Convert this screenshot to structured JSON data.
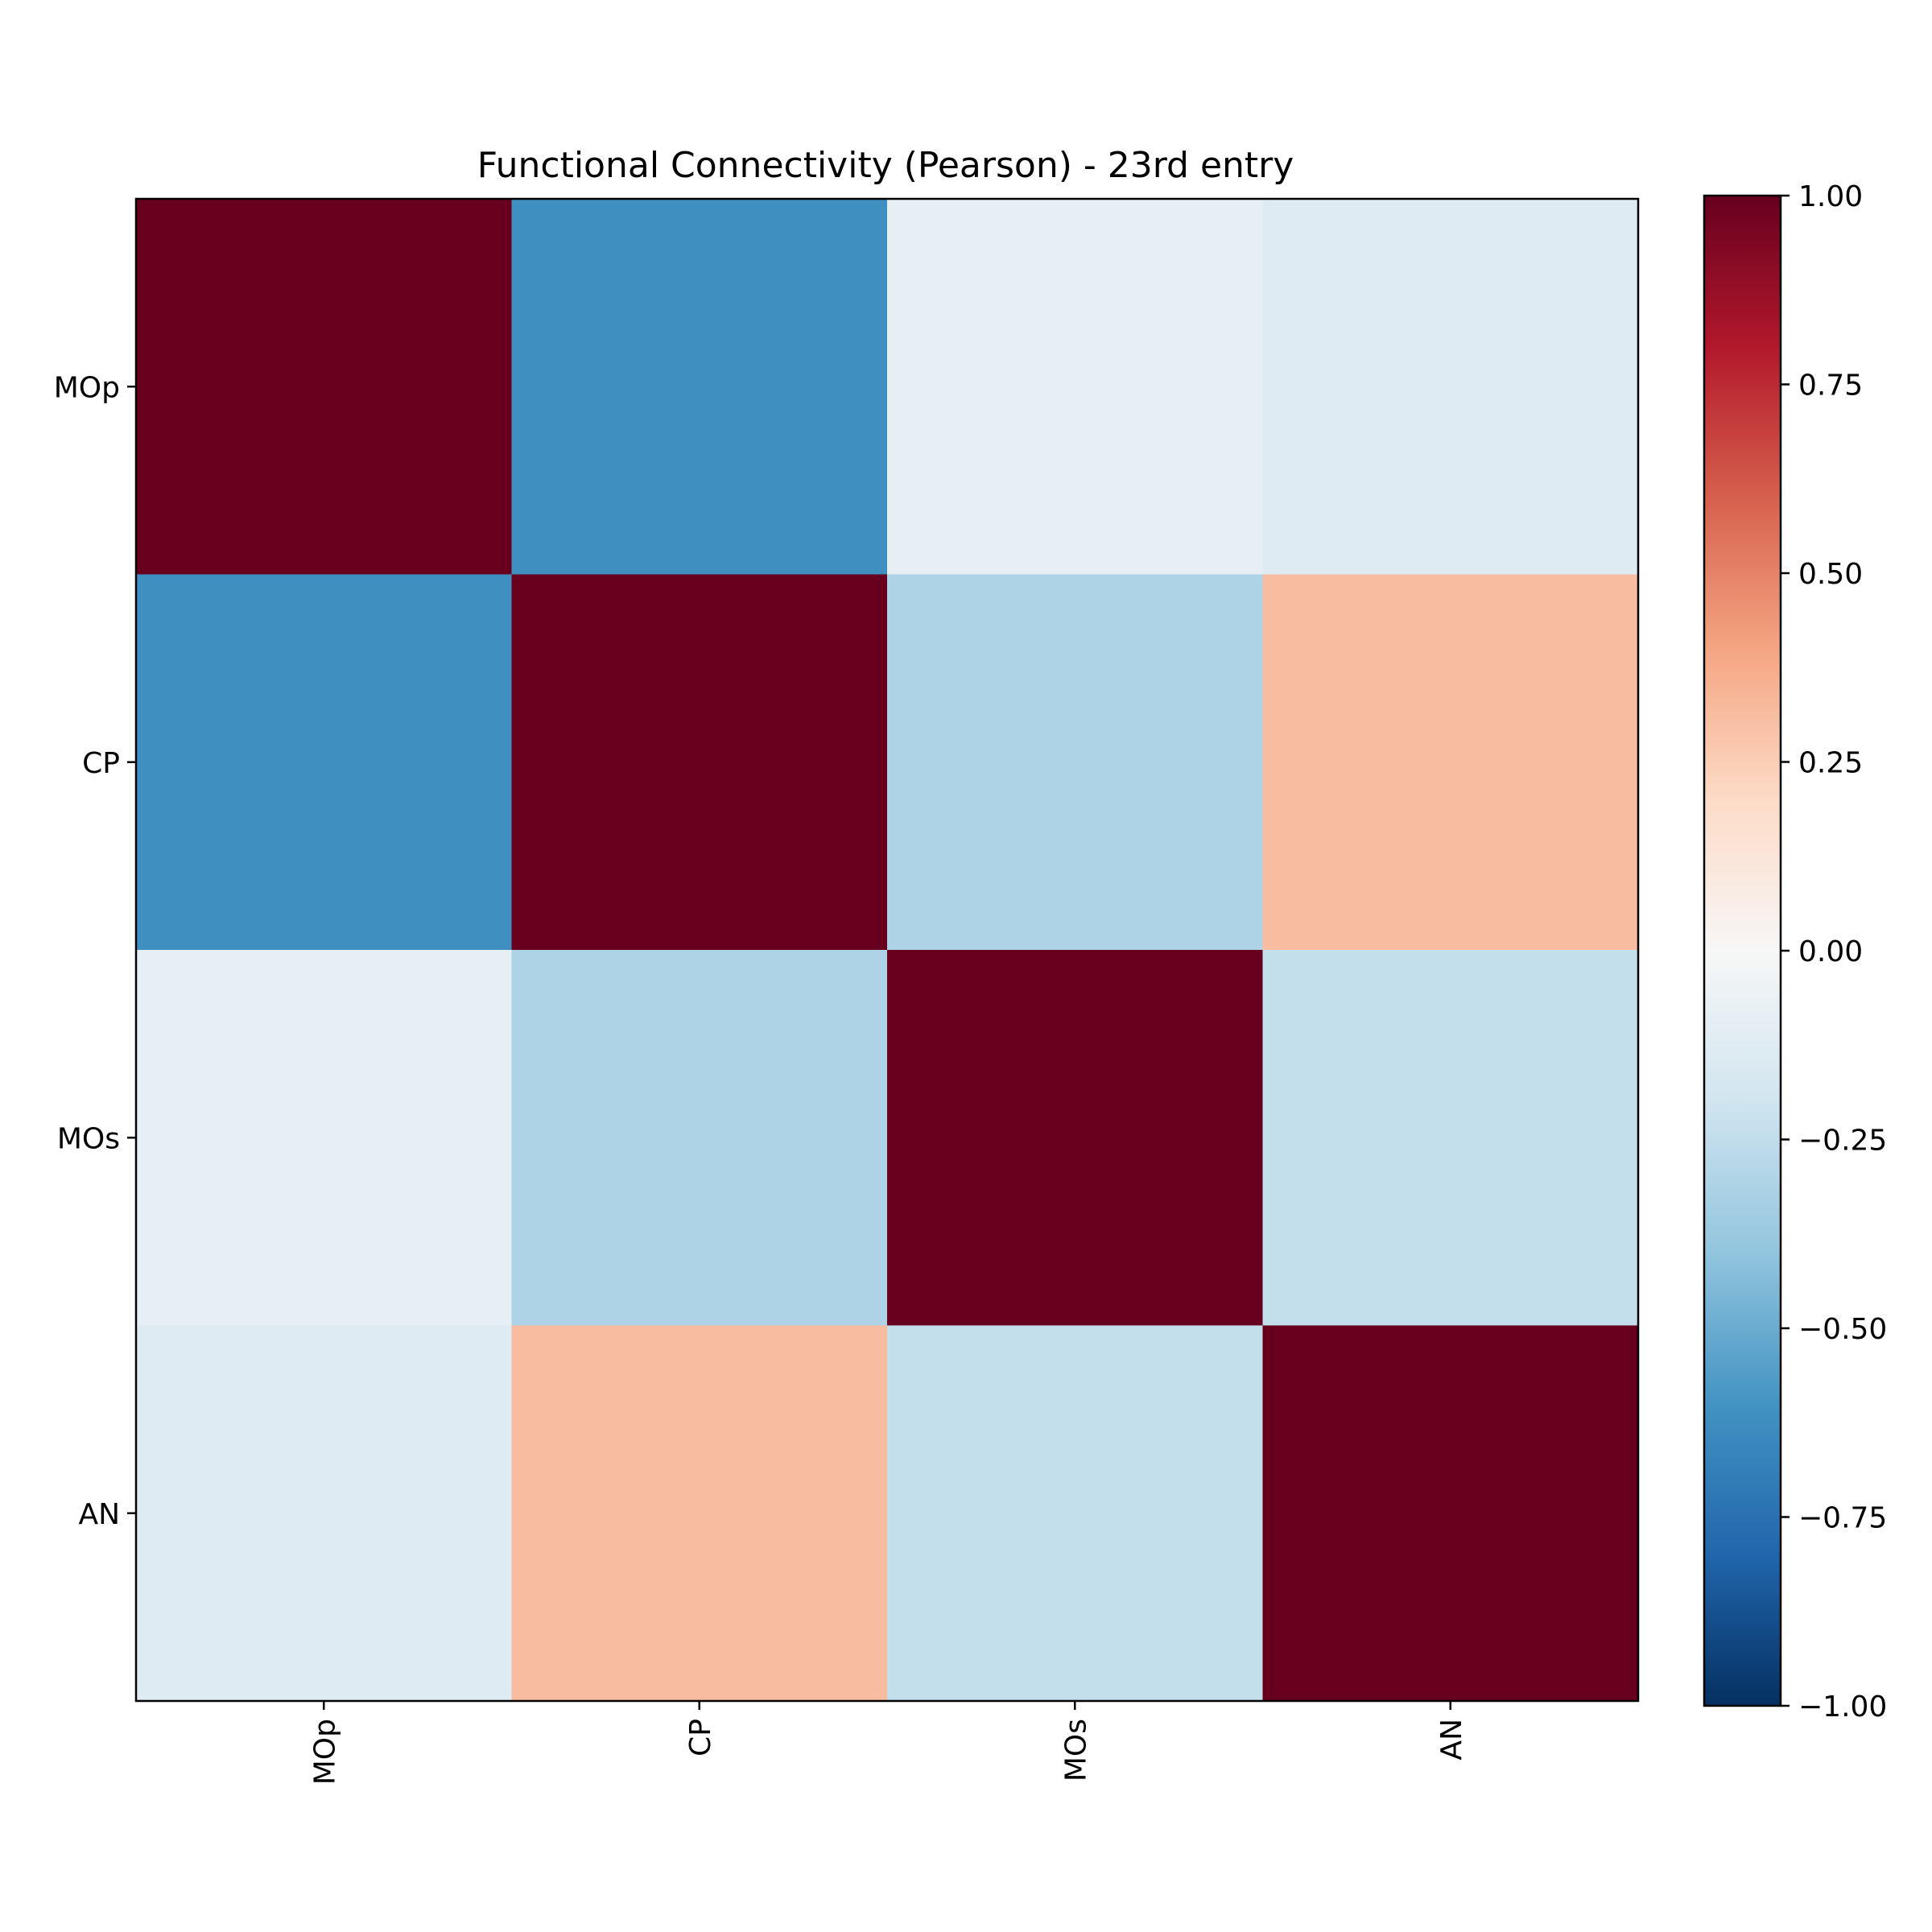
{
  "chart_data": {
    "type": "heatmap",
    "title": "Functional Connectivity (Pearson) - 23rd entry",
    "xlabel": "",
    "ylabel": "",
    "x_categories": [
      "MOp",
      "CP",
      "MOs",
      "AN"
    ],
    "y_categories": [
      "MOp",
      "CP",
      "MOs",
      "AN"
    ],
    "x_tick_rotation": "vertical",
    "values": [
      [
        1.0,
        -0.62,
        -0.09,
        -0.13
      ],
      [
        -0.62,
        1.0,
        -0.31,
        0.31
      ],
      [
        -0.09,
        -0.31,
        1.0,
        -0.24
      ],
      [
        -0.13,
        0.31,
        -0.24,
        1.0
      ]
    ],
    "colormap": "RdBu_r",
    "vmin": -1.0,
    "vmax": 1.0,
    "colorbar": {
      "ticks": [
        1.0,
        0.75,
        0.5,
        0.25,
        0.0,
        -0.25,
        -0.5,
        -0.75,
        -1.0
      ],
      "tick_labels": [
        "1.00",
        "0.75",
        "0.50",
        "0.25",
        "0.00",
        "−0.25",
        "−0.50",
        "−0.75",
        "−1.00"
      ],
      "placement": "right"
    },
    "grid": false
  }
}
